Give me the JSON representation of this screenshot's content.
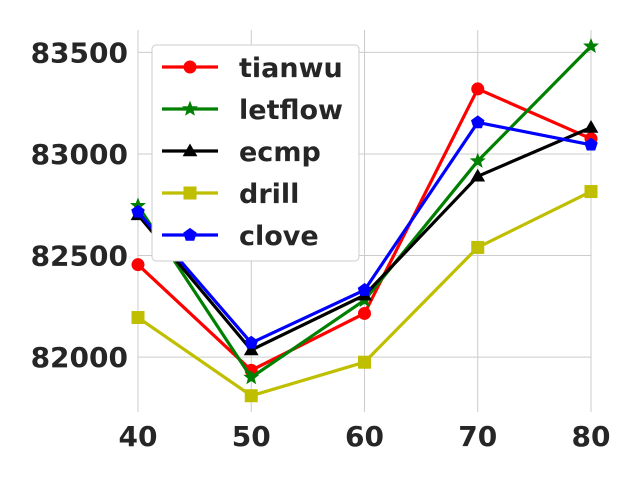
{
  "chart_data": {
    "type": "line",
    "title": "",
    "xlabel": "",
    "ylabel": "",
    "x": [
      40,
      50,
      60,
      70,
      80
    ],
    "xlim": [
      40,
      80
    ],
    "ylim": [
      81730,
      83610
    ],
    "xticks": [
      "40",
      "50",
      "60",
      "70",
      "80"
    ],
    "yticks": [
      "82000",
      "82500",
      "83000",
      "83500"
    ],
    "ytick_values": [
      82000,
      82500,
      83000,
      83500
    ],
    "grid": true,
    "legend_position": "upper-left",
    "series": [
      {
        "name": "tianwu",
        "color": "#ff0000",
        "marker": "circle",
        "values": [
          82455,
          81935,
          82215,
          83320,
          83075
        ]
      },
      {
        "name": "letflow",
        "color": "#008000",
        "marker": "star",
        "values": [
          82745,
          81900,
          82280,
          82965,
          83530
        ]
      },
      {
        "name": "ecmp",
        "color": "#000000",
        "marker": "triangle",
        "values": [
          82700,
          82035,
          82305,
          82890,
          83130
        ]
      },
      {
        "name": "drill",
        "color": "#bfbf00",
        "marker": "square",
        "values": [
          82195,
          81810,
          81975,
          82540,
          82815
        ]
      },
      {
        "name": "clove",
        "color": "#0000ff",
        "marker": "pentagon",
        "values": [
          82715,
          82070,
          82330,
          83155,
          83045
        ]
      }
    ]
  }
}
